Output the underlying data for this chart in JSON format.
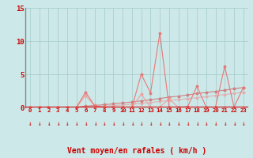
{
  "xlabel": "Vent moyen/en rafales ( km/h )",
  "bg_color": "#cce8e8",
  "grid_color": "#aacece",
  "x_values": [
    0,
    1,
    2,
    3,
    4,
    5,
    6,
    7,
    8,
    9,
    10,
    11,
    12,
    13,
    14,
    15,
    16,
    17,
    18,
    19,
    20,
    21,
    22,
    23
  ],
  "line1_y": [
    0,
    0,
    0,
    0,
    0,
    0,
    2.3,
    0.2,
    0.05,
    0.05,
    0.0,
    0.05,
    5.0,
    2.2,
    11.2,
    0.05,
    0.05,
    0.1,
    3.2,
    0.05,
    0.05,
    6.2,
    0.05,
    3.0
  ],
  "line2_y": [
    0,
    0,
    0,
    0,
    0,
    0,
    1.8,
    0.2,
    0,
    0,
    0,
    0,
    2.0,
    0.05,
    0.05,
    1.3,
    0,
    0,
    0,
    0,
    0,
    0,
    0,
    0
  ],
  "line3_y": [
    0,
    0,
    0,
    0,
    0,
    0.05,
    0.18,
    0.3,
    0.42,
    0.54,
    0.68,
    0.82,
    1.0,
    1.15,
    1.35,
    1.55,
    1.7,
    1.88,
    2.1,
    2.25,
    2.42,
    2.62,
    2.82,
    3.0
  ],
  "line4_y": [
    0,
    0,
    0,
    0,
    0,
    0.02,
    0.08,
    0.14,
    0.2,
    0.28,
    0.38,
    0.48,
    0.62,
    0.75,
    0.9,
    1.05,
    1.18,
    1.32,
    1.48,
    1.62,
    1.78,
    1.95,
    2.12,
    2.28
  ],
  "line_color1": "#e87878",
  "line_color2": "#f0a0a0",
  "line_color3": "#d08080",
  "line_color4": "#e0b0b0",
  "marker_size": 1.8,
  "arrow_color": "#cc2222",
  "axis_color": "#cc0000",
  "tick_color": "#cc0000",
  "left_spine_color": "#888888",
  "xlim": [
    -0.5,
    23.5
  ],
  "ylim": [
    0,
    15
  ],
  "yticks": [
    0,
    5,
    10,
    15
  ],
  "xticks": [
    0,
    1,
    2,
    3,
    4,
    5,
    6,
    7,
    8,
    9,
    10,
    11,
    12,
    13,
    14,
    15,
    16,
    17,
    18,
    19,
    20,
    21,
    22,
    23
  ]
}
